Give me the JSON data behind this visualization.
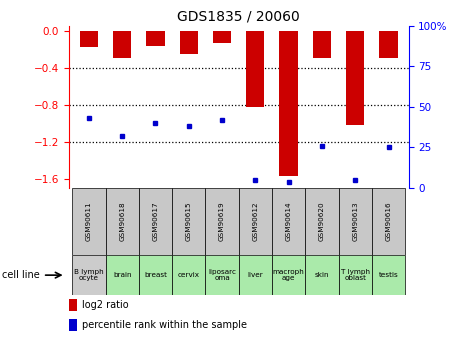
{
  "title": "GDS1835 / 20060",
  "gsm_labels": [
    "GSM90611",
    "GSM90618",
    "GSM90617",
    "GSM90615",
    "GSM90619",
    "GSM90612",
    "GSM90614",
    "GSM90620",
    "GSM90613",
    "GSM90616"
  ],
  "cell_labels": [
    "B lymph\nocyte",
    "brain",
    "breast",
    "cervix",
    "liposarc\noma",
    "liver",
    "macroph\nage",
    "skin",
    "T lymph\noblast",
    "testis"
  ],
  "cell_bg_colors": [
    "#cccccc",
    "#aaeaaa",
    "#aaeaaa",
    "#aaeaaa",
    "#aaeaaa",
    "#aaeaaa",
    "#aaeaaa",
    "#aaeaaa",
    "#aaeaaa",
    "#aaeaaa"
  ],
  "log2_ratios": [
    -0.18,
    -0.3,
    -0.17,
    -0.25,
    -0.13,
    -0.83,
    -1.57,
    -0.3,
    -1.02,
    -0.3
  ],
  "pct_rank_values": [
    43,
    32,
    40,
    38,
    42,
    5,
    4,
    26,
    5,
    25
  ],
  "ylim_left": [
    -1.7,
    0.05
  ],
  "ylim_right": [
    0,
    100
  ],
  "yticks_left": [
    0,
    -0.4,
    -0.8,
    -1.2,
    -1.6
  ],
  "yticks_right": [
    0,
    25,
    50,
    75,
    100
  ],
  "bar_color": "#cc0000",
  "dot_color": "#0000cc",
  "bar_width": 0.55,
  "gsm_box_color": "#c8c8c8",
  "cell_line_label": "cell line"
}
